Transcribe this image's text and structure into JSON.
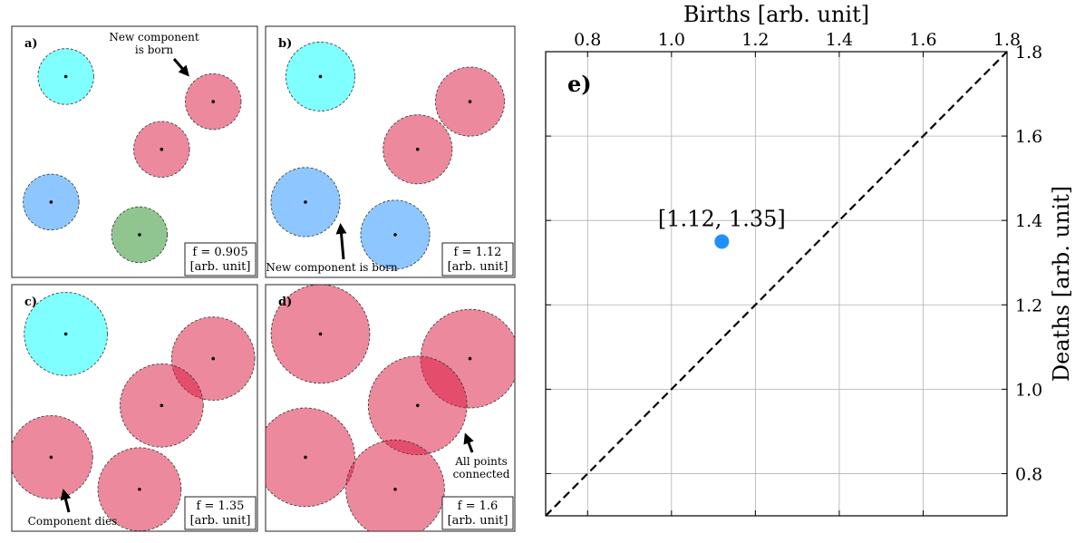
{
  "chart_data": [
    {
      "type": "diagram",
      "panel": "a)",
      "filtration_label": [
        "f = 0.905",
        "[arb. unit]"
      ],
      "annotations": [
        {
          "text": [
            "New component",
            "is born"
          ]
        }
      ],
      "points": [
        {
          "x": 0.22,
          "y": 0.8,
          "color": "#00ffff"
        },
        {
          "x": 0.82,
          "y": 0.7,
          "color": "#dc143c"
        },
        {
          "x": 0.61,
          "y": 0.51,
          "color": "#dc143c"
        },
        {
          "x": 0.16,
          "y": 0.3,
          "color": "#1e90ff"
        },
        {
          "x": 0.52,
          "y": 0.17,
          "color": "#228b22"
        }
      ],
      "radius": 0.905
    },
    {
      "type": "diagram",
      "panel": "b)",
      "filtration_label": [
        "f = 1.12",
        "[arb. unit]"
      ],
      "annotations": [
        {
          "text": [
            "New component is born"
          ]
        }
      ],
      "points": [
        {
          "x": 0.22,
          "y": 0.8,
          "color": "#00ffff"
        },
        {
          "x": 0.82,
          "y": 0.7,
          "color": "#dc143c"
        },
        {
          "x": 0.61,
          "y": 0.51,
          "color": "#dc143c"
        },
        {
          "x": 0.16,
          "y": 0.3,
          "color": "#1e90ff"
        },
        {
          "x": 0.52,
          "y": 0.17,
          "color": "#1e90ff"
        }
      ],
      "radius": 1.12
    },
    {
      "type": "diagram",
      "panel": "c)",
      "filtration_label": [
        "f = 1.35",
        "[arb. unit]"
      ],
      "annotations": [
        {
          "text": [
            "Component dies"
          ]
        }
      ],
      "points": [
        {
          "x": 0.22,
          "y": 0.8,
          "color": "#00ffff"
        },
        {
          "x": 0.82,
          "y": 0.7,
          "color": "#dc143c"
        },
        {
          "x": 0.61,
          "y": 0.51,
          "color": "#dc143c"
        },
        {
          "x": 0.16,
          "y": 0.3,
          "color": "#dc143c"
        },
        {
          "x": 0.52,
          "y": 0.17,
          "color": "#dc143c"
        }
      ],
      "radius": 1.35
    },
    {
      "type": "diagram",
      "panel": "d)",
      "filtration_label": [
        "f = 1.6",
        "[arb. unit]"
      ],
      "annotations": [
        {
          "text": [
            "All points",
            "connected"
          ]
        }
      ],
      "points": [
        {
          "x": 0.22,
          "y": 0.8,
          "color": "#dc143c"
        },
        {
          "x": 0.82,
          "y": 0.7,
          "color": "#dc143c"
        },
        {
          "x": 0.61,
          "y": 0.51,
          "color": "#dc143c"
        },
        {
          "x": 0.16,
          "y": 0.3,
          "color": "#dc143c"
        },
        {
          "x": 0.52,
          "y": 0.17,
          "color": "#dc143c"
        }
      ],
      "radius": 1.6
    },
    {
      "type": "scatter",
      "panel": "e)",
      "xlabel": "Births [arb. unit]",
      "ylabel": "Deaths [arb. unit]",
      "xlim": [
        0.7,
        1.8
      ],
      "ylim": [
        0.7,
        1.8
      ],
      "xticks": [
        0.8,
        1.0,
        1.2,
        1.4,
        1.6,
        1.8
      ],
      "yticks": [
        0.8,
        1.0,
        1.2,
        1.4,
        1.6,
        1.8
      ],
      "xtick_labels": [
        "0.8",
        "1.0",
        "1.2",
        "1.4",
        "1.6",
        "1.8"
      ],
      "ytick_labels": [
        "0.8",
        "1.0",
        "1.2",
        "1.4",
        "1.6",
        "1.8"
      ],
      "x_axis_position": "top",
      "y_axis_position": "right",
      "grid": true,
      "diagonal": "dashed",
      "points": [
        {
          "x": 1.12,
          "y": 1.35,
          "label": "[1.12, 1.35]",
          "color": "#1e90ff"
        }
      ]
    }
  ]
}
